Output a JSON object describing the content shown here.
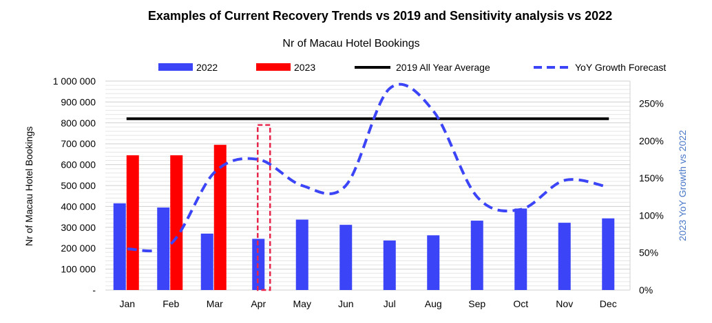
{
  "chart_data": {
    "type": "bar",
    "title": "Examples of Current Recovery Trends vs 2019 and Sensitivity analysis vs 2022",
    "subtitle": "Nr of Macau Hotel Bookings",
    "ylabel": "Nr of Macau Hotel Bookings",
    "y2label": "2023 YoY Growth vs 2022",
    "categories": [
      "Jan",
      "Feb",
      "Mar",
      "Apr",
      "May",
      "Jun",
      "Jul",
      "Aug",
      "Sep",
      "Oct",
      "Nov",
      "Dec"
    ],
    "ylim": [
      0,
      1000000
    ],
    "y2lim": [
      0,
      2.8
    ],
    "yticks": [
      "-",
      "100 000",
      "200 000",
      "300 000",
      "400 000",
      "500 000",
      "600 000",
      "700 000",
      "800 000",
      "900 000",
      "1 000 000"
    ],
    "y2ticks": [
      "0%",
      "50%",
      "100%",
      "150%",
      "200%",
      "250%"
    ],
    "series": [
      {
        "name": "2022",
        "type": "bar",
        "color": "#3b44f6",
        "values": [
          415000,
          395000,
          270000,
          245000,
          337000,
          312000,
          237000,
          262000,
          332000,
          390000,
          322000,
          343000
        ]
      },
      {
        "name": "2023",
        "type": "bar",
        "color": "#ff0000",
        "values": [
          645000,
          645000,
          695000,
          null,
          null,
          null,
          null,
          null,
          null,
          null,
          null,
          null
        ]
      },
      {
        "name": "2019 All Year Average",
        "type": "line",
        "color": "#000000",
        "value": 820000
      },
      {
        "name": "YoY Growth Forecast",
        "type": "line",
        "axis": "secondary",
        "dashed": true,
        "color": "#3b44f6",
        "values": [
          0.55,
          0.62,
          1.58,
          1.75,
          1.4,
          1.4,
          2.7,
          2.4,
          1.25,
          1.08,
          1.47,
          1.38
        ]
      }
    ],
    "annotation": {
      "category": "Apr",
      "value": 790000,
      "style": "dashed-box",
      "color": "#e8254a"
    },
    "legend": "top",
    "grid": true
  }
}
